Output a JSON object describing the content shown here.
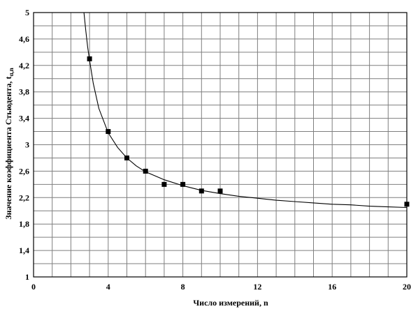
{
  "chart_data": {
    "type": "scatter",
    "title": "",
    "xlabel": "Число измерений, n",
    "ylabel": "Значение коэффициента Стьюдента, t",
    "ylabel_sub": "α,n",
    "xlim": [
      0,
      20
    ],
    "ylim": [
      1,
      5
    ],
    "x_ticks": [
      {
        "value": 0,
        "label": "0"
      },
      {
        "value": 4,
        "label": "4"
      },
      {
        "value": 8,
        "label": "8"
      },
      {
        "value": 12,
        "label": "12"
      },
      {
        "value": 16,
        "label": "16"
      },
      {
        "value": 20,
        "label": "20"
      }
    ],
    "y_ticks": [
      {
        "value": 1,
        "label": "1"
      },
      {
        "value": 1.4,
        "label": "1,4"
      },
      {
        "value": 1.8,
        "label": "1,8"
      },
      {
        "value": 2.2,
        "label": "2,2"
      },
      {
        "value": 2.6,
        "label": "2,6"
      },
      {
        "value": 3,
        "label": "3"
      },
      {
        "value": 3.4,
        "label": "3,4"
      },
      {
        "value": 3.8,
        "label": "3,8"
      },
      {
        "value": 4.2,
        "label": "4,2"
      },
      {
        "value": 4.6,
        "label": "4,6"
      },
      {
        "value": 5,
        "label": "5"
      }
    ],
    "grid": true,
    "points": [
      {
        "x": 3,
        "y": 4.3
      },
      {
        "x": 4,
        "y": 3.2
      },
      {
        "x": 5,
        "y": 2.8
      },
      {
        "x": 6,
        "y": 2.6
      },
      {
        "x": 7,
        "y": 2.4
      },
      {
        "x": 8,
        "y": 2.4
      },
      {
        "x": 9,
        "y": 2.3
      },
      {
        "x": 10,
        "y": 2.3
      },
      {
        "x": 20,
        "y": 2.1
      }
    ],
    "fit_curve": {
      "x": [
        2.7,
        2.8,
        2.9,
        3.0,
        3.2,
        3.5,
        4,
        4.5,
        5,
        5.5,
        6,
        7,
        8,
        9,
        10,
        11,
        12,
        13,
        14,
        15,
        16,
        17,
        18,
        19,
        20
      ],
      "y": [
        5.0,
        4.72,
        4.48,
        4.28,
        3.93,
        3.55,
        3.18,
        2.96,
        2.8,
        2.68,
        2.59,
        2.47,
        2.38,
        2.31,
        2.26,
        2.22,
        2.19,
        2.16,
        2.14,
        2.12,
        2.1,
        2.09,
        2.07,
        2.06,
        2.05
      ]
    },
    "colors": {
      "points": "#000000",
      "curve": "#000000",
      "grid": "#7f7f7f"
    }
  }
}
